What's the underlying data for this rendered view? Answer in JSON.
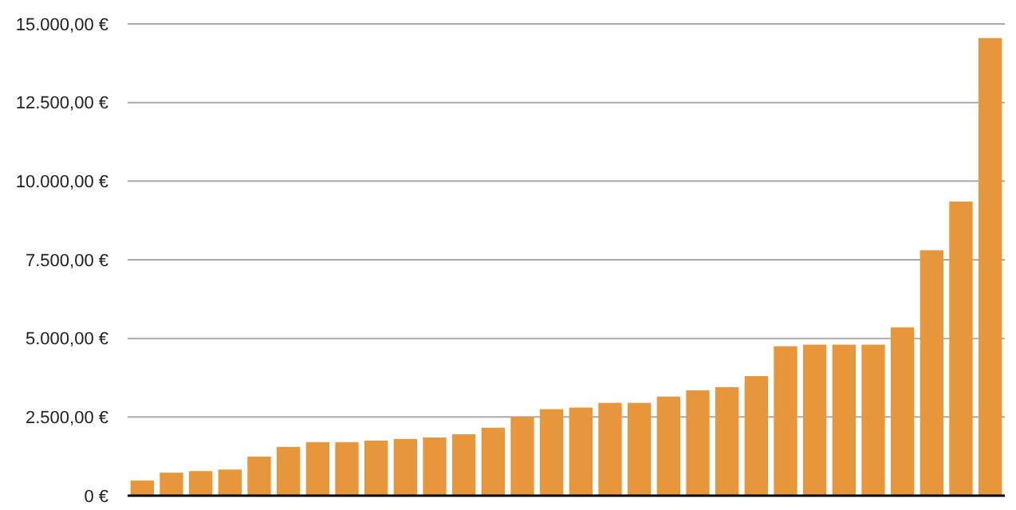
{
  "chart_data": {
    "type": "bar",
    "categories": [
      null,
      null,
      null,
      null,
      null,
      null,
      null,
      null,
      null,
      null,
      null,
      null,
      null,
      null,
      null,
      null,
      null,
      null,
      null,
      null,
      null,
      null,
      null,
      null,
      null,
      null,
      null,
      null,
      null,
      null
    ],
    "values": [
      480,
      730,
      780,
      830,
      1240,
      1550,
      1700,
      1700,
      1750,
      1800,
      1850,
      1950,
      2160,
      2500,
      2750,
      2800,
      2950,
      2950,
      3150,
      3350,
      3450,
      3800,
      4750,
      4800,
      4800,
      4800,
      5350,
      7800,
      9350,
      14550
    ],
    "color": "#e8963c",
    "ylim": [
      0,
      15000
    ],
    "yticks": [
      {
        "value": 0,
        "label": "0 €"
      },
      {
        "value": 2500,
        "label": "2.500,00 €"
      },
      {
        "value": 5000,
        "label": "5.000,00 €"
      },
      {
        "value": 7500,
        "label": "7.500,00 €"
      },
      {
        "value": 10000,
        "label": "10.000,00 €"
      },
      {
        "value": 12500,
        "label": "12.500,00 €"
      },
      {
        "value": 15000,
        "label": "15.000,00 €"
      }
    ],
    "grid": "y"
  }
}
